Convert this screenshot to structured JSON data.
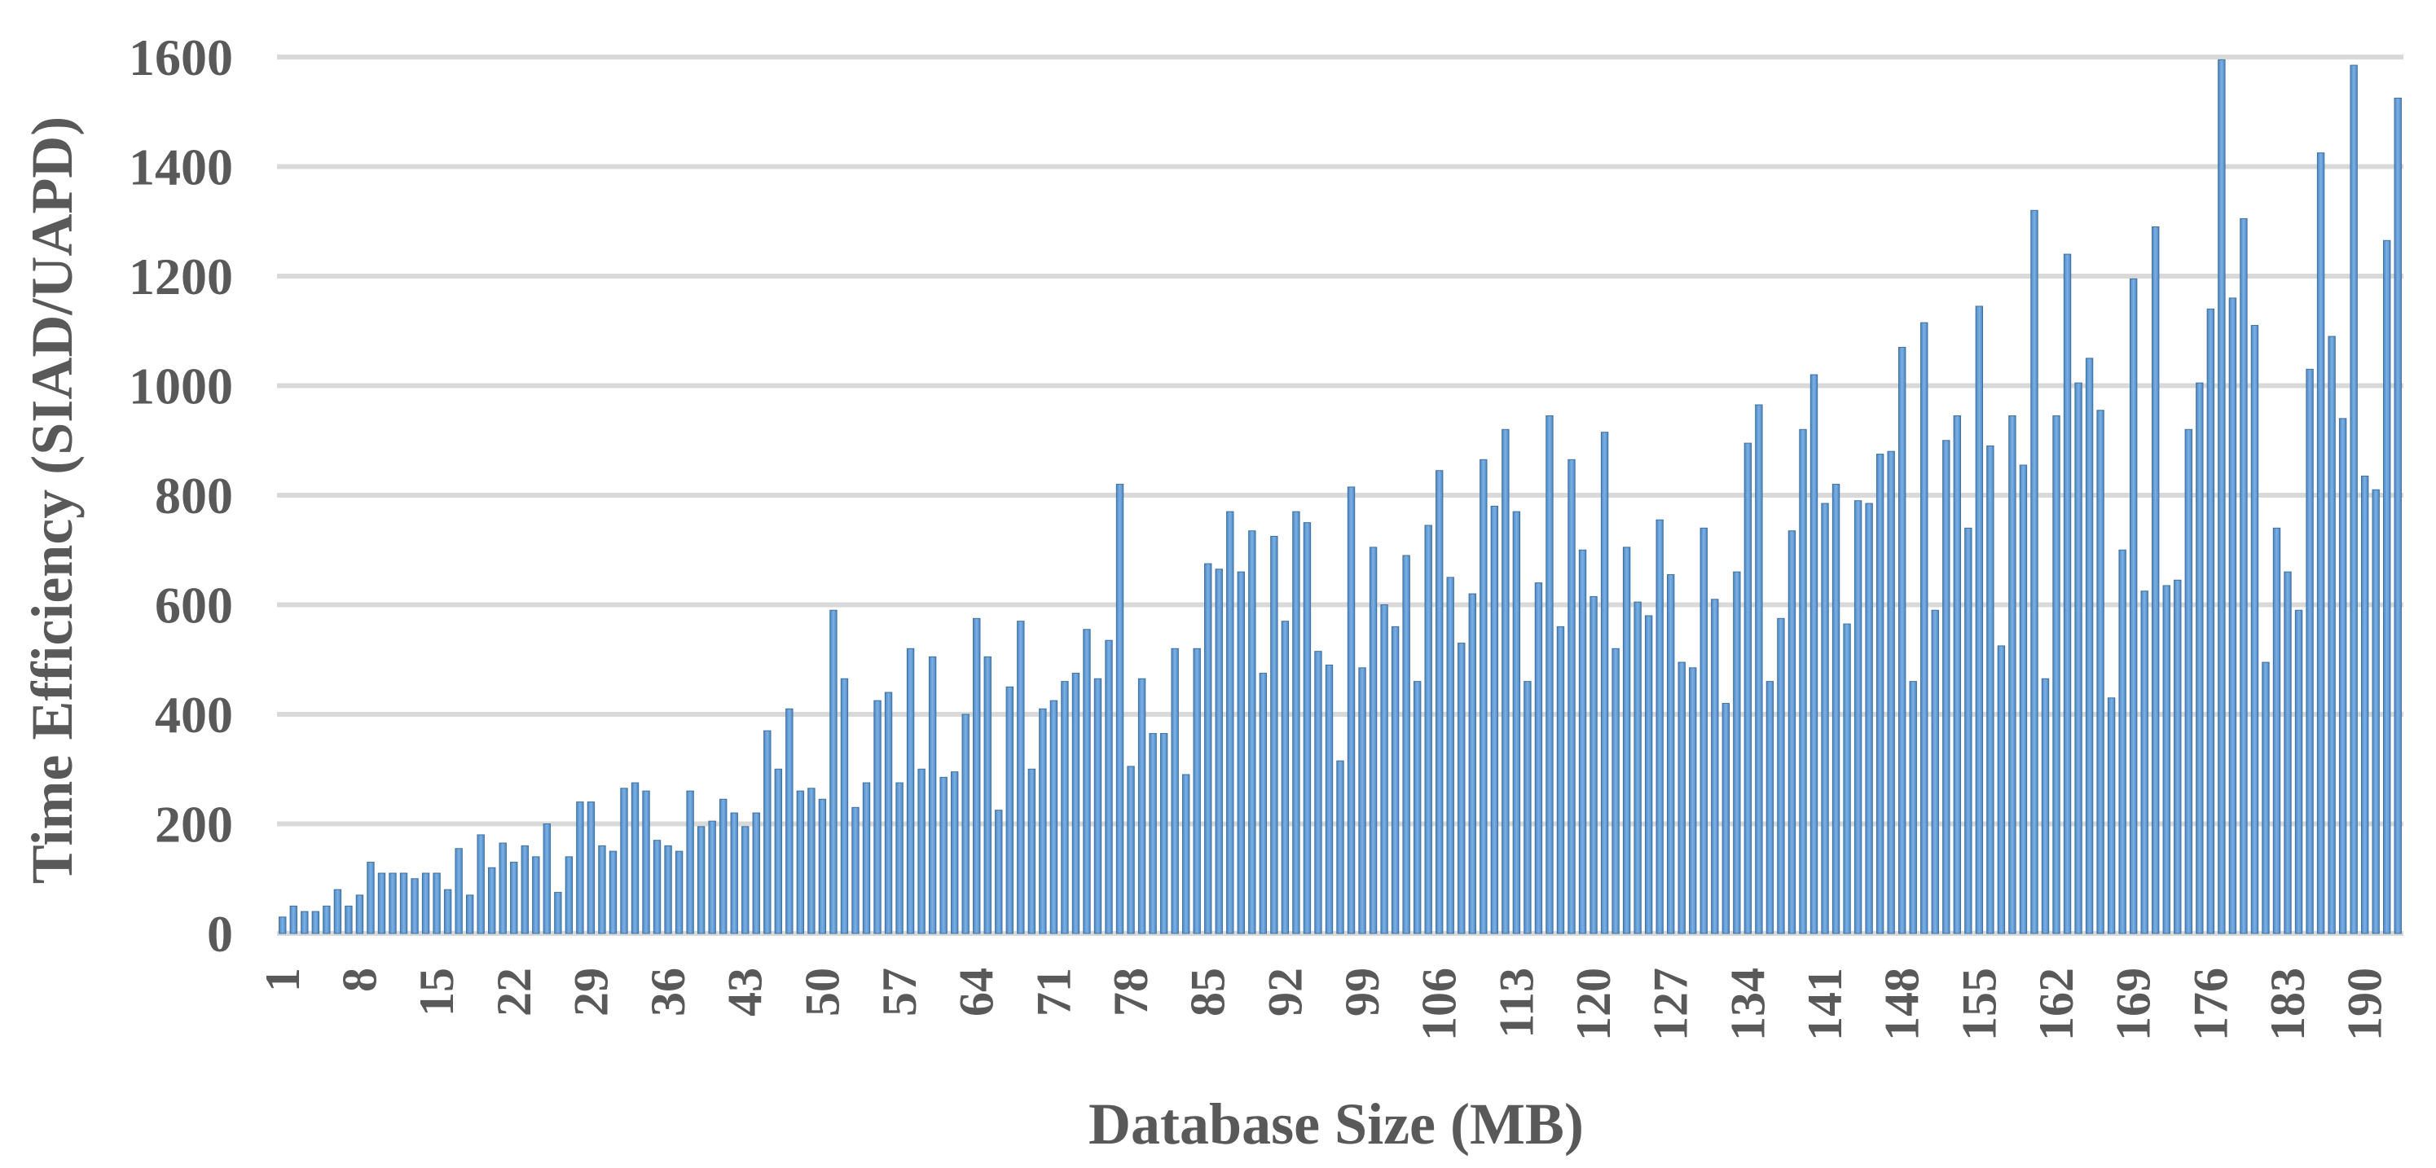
{
  "chart_data": {
    "type": "bar",
    "xlabel": "Database Size (MB)",
    "ylabel": "Time Efficiency (SIAD/UAPD)",
    "ylim": [
      0,
      1600
    ],
    "yticks": [
      0,
      200,
      400,
      600,
      800,
      1000,
      1200,
      1400,
      1600
    ],
    "xtick_labels": [
      "1",
      "8",
      "15",
      "22",
      "29",
      "36",
      "43",
      "50",
      "57",
      "64",
      "71",
      "78",
      "85",
      "92",
      "99",
      "106",
      "113",
      "120",
      "127",
      "134",
      "141",
      "148",
      "155",
      "162",
      "169",
      "176",
      "183",
      "190"
    ],
    "grid": true,
    "legend": "none",
    "bar_color": "#5b9bd5",
    "categories": [
      1,
      2,
      3,
      4,
      5,
      6,
      7,
      8,
      9,
      10,
      11,
      12,
      13,
      14,
      15,
      16,
      17,
      18,
      19,
      20,
      21,
      22,
      23,
      24,
      25,
      26,
      27,
      28,
      29,
      30,
      31,
      32,
      33,
      34,
      35,
      36,
      37,
      38,
      39,
      40,
      41,
      42,
      43,
      44,
      45,
      46,
      47,
      48,
      49,
      50,
      51,
      52,
      53,
      54,
      55,
      56,
      57,
      58,
      59,
      60,
      61,
      62,
      63,
      64,
      65,
      66,
      67,
      68,
      69,
      70,
      71,
      72,
      73,
      74,
      75,
      76,
      77,
      78,
      79,
      80,
      81,
      82,
      83,
      84,
      85,
      86,
      87,
      88,
      89,
      90,
      91,
      92,
      93,
      94,
      95,
      96,
      97,
      98,
      99,
      100,
      101,
      102,
      103,
      104,
      105,
      106,
      107,
      108,
      109,
      110,
      111,
      112,
      113,
      114,
      115,
      116,
      117,
      118,
      119,
      120,
      121,
      122,
      123,
      124,
      125,
      126,
      127,
      128,
      129,
      130,
      131,
      132,
      133,
      134,
      135,
      136,
      137,
      138,
      139,
      140,
      141,
      142,
      143,
      144,
      145,
      146,
      147,
      148,
      149,
      150,
      151,
      152,
      153,
      154,
      155,
      156,
      157,
      158,
      159,
      160,
      161,
      162,
      163,
      164,
      165,
      166,
      167,
      168,
      169,
      170,
      171,
      172,
      173,
      174,
      175,
      176,
      177,
      178,
      179,
      180,
      181,
      182,
      183,
      184,
      185,
      186,
      187,
      188,
      189,
      190,
      191,
      192,
      193
    ],
    "values": [
      30,
      50,
      40,
      40,
      50,
      80,
      50,
      70,
      130,
      110,
      110,
      110,
      100,
      110,
      110,
      80,
      155,
      70,
      180,
      120,
      165,
      130,
      160,
      140,
      200,
      75,
      140,
      240,
      240,
      160,
      150,
      265,
      275,
      260,
      170,
      160,
      150,
      260,
      195,
      205,
      245,
      220,
      195,
      220,
      370,
      300,
      410,
      260,
      265,
      245,
      590,
      465,
      230,
      275,
      425,
      440,
      275,
      520,
      300,
      505,
      285,
      295,
      400,
      575,
      505,
      225,
      450,
      570,
      300,
      410,
      425,
      460,
      475,
      555,
      465,
      535,
      820,
      305,
      465,
      365,
      365,
      520,
      290,
      520,
      675,
      665,
      770,
      660,
      735,
      475,
      725,
      570,
      770,
      750,
      515,
      490,
      315,
      815,
      485,
      705,
      600,
      560,
      690,
      460,
      745,
      845,
      650,
      530,
      620,
      865,
      780,
      920,
      770,
      460,
      640,
      945,
      560,
      865,
      700,
      615,
      915,
      520,
      705,
      605,
      580,
      755,
      655,
      495,
      485,
      740,
      610,
      420,
      660,
      895,
      965,
      460,
      575,
      735,
      920,
      1020,
      785,
      820,
      565,
      790,
      785,
      875,
      880,
      1070,
      460,
      1115,
      590,
      900,
      945,
      740,
      1145,
      890,
      525,
      945,
      855,
      1320,
      465,
      945,
      1240,
      1005,
      1050,
      955,
      430,
      700,
      1195,
      625,
      1290,
      635,
      645,
      920,
      1005,
      1140,
      1595,
      1160,
      1305,
      1110,
      495,
      740,
      660,
      590,
      1030,
      1425,
      1090,
      940,
      1585,
      835,
      810,
      1265,
      1525
    ]
  }
}
